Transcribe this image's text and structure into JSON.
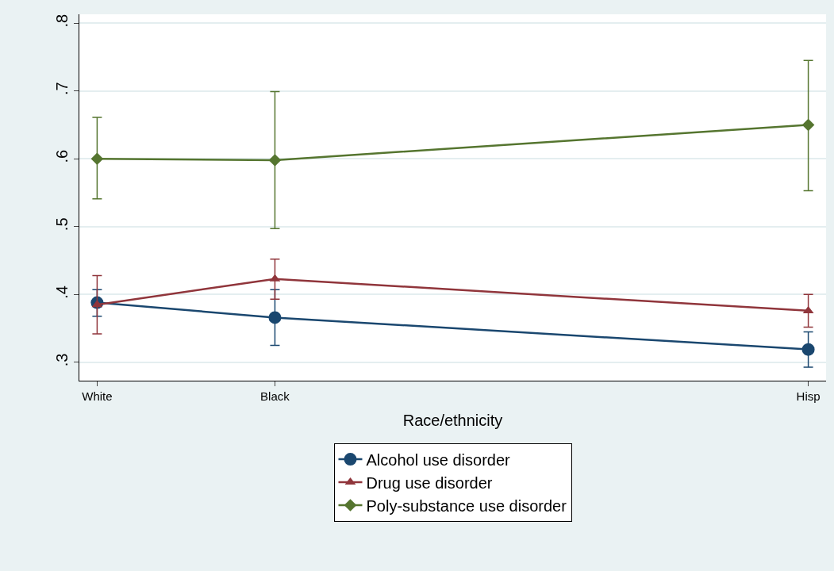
{
  "chart_data": {
    "type": "line",
    "xlabel": "Race/ethnicity",
    "categories": [
      "White",
      "Black",
      null,
      null,
      "Hisp"
    ],
    "ylim": [
      0.273,
      0.813
    ],
    "yticks": [
      {
        "value": 0.3,
        "label": ".3"
      },
      {
        "value": 0.4,
        "label": ".4"
      },
      {
        "value": 0.5,
        "label": ".5"
      },
      {
        "value": 0.6,
        "label": ".6"
      },
      {
        "value": 0.7,
        "label": ".7"
      },
      {
        "value": 0.8,
        "label": ".8"
      }
    ],
    "grid": "y",
    "legend": "bottom",
    "series": [
      {
        "name": "Alcohol use disorder",
        "color": "#1a476f",
        "marker": "circle",
        "values": [
          0.388,
          0.366,
          null,
          null,
          0.319
        ],
        "errors": [
          [
            0.368,
            0.407
          ],
          [
            0.325,
            0.407
          ],
          null,
          null,
          [
            0.293,
            0.345
          ]
        ]
      },
      {
        "name": "Drug use disorder",
        "color": "#90353b",
        "marker": "triangle",
        "values": [
          0.385,
          0.423,
          null,
          null,
          0.376
        ],
        "errors": [
          [
            0.342,
            0.428
          ],
          [
            0.393,
            0.452
          ],
          null,
          null,
          [
            0.352,
            0.4
          ]
        ]
      },
      {
        "name": "Poly-substance use disorder",
        "color": "#55752f",
        "marker": "diamond",
        "values": [
          0.6,
          0.598,
          null,
          null,
          0.65
        ],
        "errors": [
          [
            0.541,
            0.661
          ],
          [
            0.497,
            0.699
          ],
          null,
          null,
          [
            0.553,
            0.745
          ]
        ]
      }
    ]
  }
}
